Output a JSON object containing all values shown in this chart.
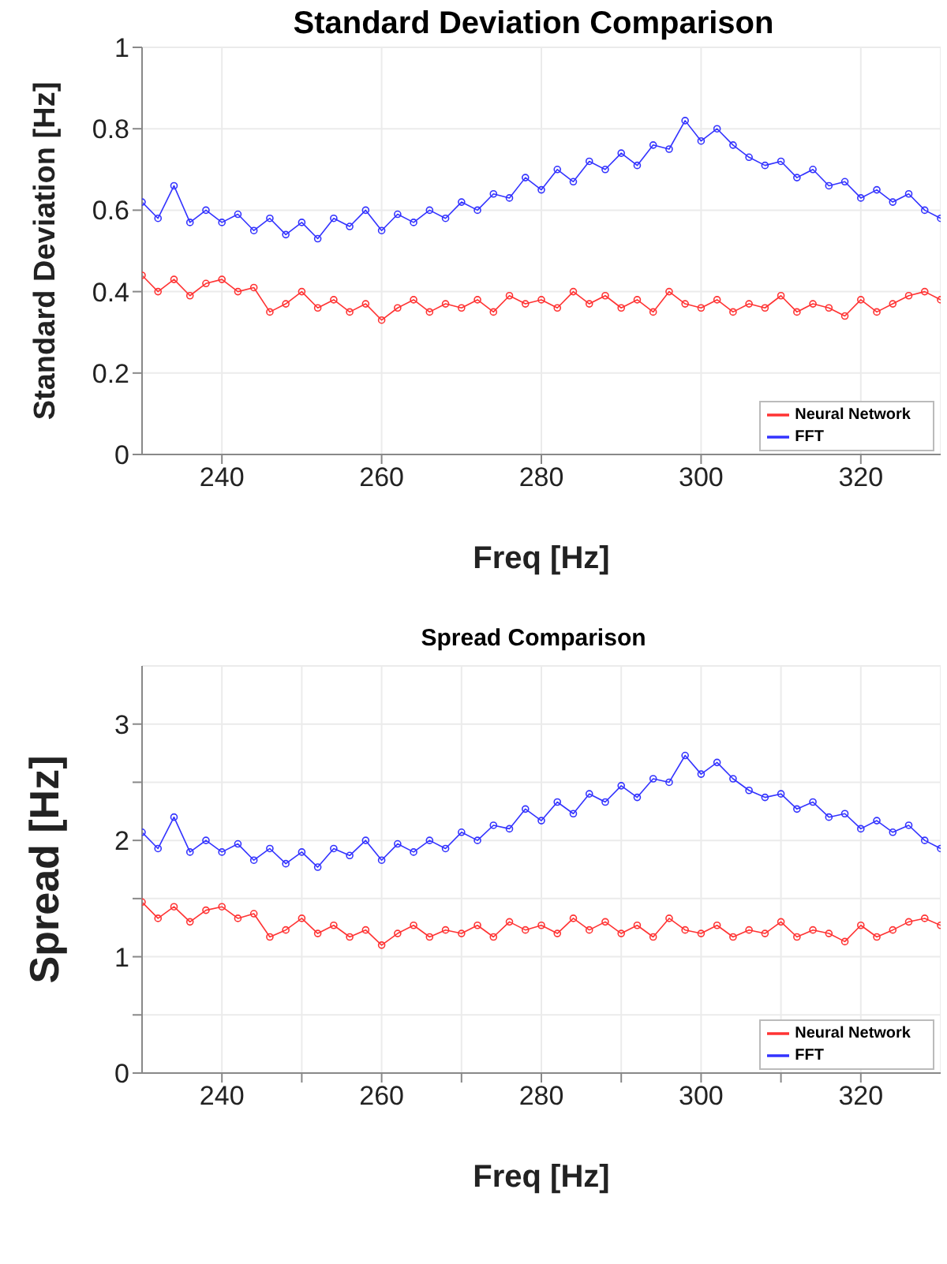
{
  "chart_data": [
    {
      "type": "line",
      "title": "Standard Deviation Comparison",
      "xlabel": "Freq [Hz]",
      "ylabel": "Standard Deviation [Hz]",
      "x": [
        230,
        232,
        234,
        236,
        238,
        240,
        242,
        244,
        246,
        248,
        250,
        252,
        254,
        256,
        258,
        260,
        262,
        264,
        266,
        268,
        270,
        272,
        274,
        276,
        278,
        280,
        282,
        284,
        286,
        288,
        290,
        292,
        294,
        296,
        298,
        300,
        302,
        304,
        306,
        308,
        310,
        312,
        314,
        316,
        318,
        320,
        322,
        324,
        326,
        328,
        330
      ],
      "series": [
        {
          "name": "Neural Network",
          "color": "#ff3333",
          "marker": "circle",
          "values": [
            0.44,
            0.4,
            0.43,
            0.39,
            0.42,
            0.43,
            0.4,
            0.41,
            0.35,
            0.37,
            0.4,
            0.36,
            0.38,
            0.35,
            0.37,
            0.33,
            0.36,
            0.38,
            0.35,
            0.37,
            0.36,
            0.38,
            0.35,
            0.39,
            0.37,
            0.38,
            0.36,
            0.4,
            0.37,
            0.39,
            0.36,
            0.38,
            0.35,
            0.4,
            0.37,
            0.36,
            0.38,
            0.35,
            0.37,
            0.36,
            0.39,
            0.35,
            0.37,
            0.36,
            0.34,
            0.38,
            0.35,
            0.37,
            0.39,
            0.4,
            0.38
          ]
        },
        {
          "name": "FFT",
          "color": "#3333ff",
          "marker": "circle",
          "values": [
            0.62,
            0.58,
            0.66,
            0.57,
            0.6,
            0.57,
            0.59,
            0.55,
            0.58,
            0.54,
            0.57,
            0.53,
            0.58,
            0.56,
            0.6,
            0.55,
            0.59,
            0.57,
            0.6,
            0.58,
            0.62,
            0.6,
            0.64,
            0.63,
            0.68,
            0.65,
            0.7,
            0.67,
            0.72,
            0.7,
            0.74,
            0.71,
            0.76,
            0.75,
            0.82,
            0.77,
            0.8,
            0.76,
            0.73,
            0.71,
            0.72,
            0.68,
            0.7,
            0.66,
            0.67,
            0.63,
            0.65,
            0.62,
            0.64,
            0.6,
            0.58
          ]
        }
      ],
      "xlim": [
        230,
        330
      ],
      "xticks": [
        240,
        260,
        280,
        300,
        320
      ],
      "ylim": [
        0,
        1
      ],
      "yticks": [
        0,
        0.2,
        0.4,
        0.6,
        0.8,
        1
      ],
      "grid": true,
      "legend": "bottom right",
      "line_style": "solid"
    },
    {
      "type": "line",
      "title": "Spread Comparison",
      "xlabel": "Freq [Hz]",
      "ylabel": "Spread [Hz]",
      "x": [
        230,
        232,
        234,
        236,
        238,
        240,
        242,
        244,
        246,
        248,
        250,
        252,
        254,
        256,
        258,
        260,
        262,
        264,
        266,
        268,
        270,
        272,
        274,
        276,
        278,
        280,
        282,
        284,
        286,
        288,
        290,
        292,
        294,
        296,
        298,
        300,
        302,
        304,
        306,
        308,
        310,
        312,
        314,
        316,
        318,
        320,
        322,
        324,
        326,
        328,
        330
      ],
      "series": [
        {
          "name": "Neural Network",
          "color": "#ff3333",
          "marker": "circle",
          "values": [
            1.47,
            1.33,
            1.43,
            1.3,
            1.4,
            1.43,
            1.33,
            1.37,
            1.17,
            1.23,
            1.33,
            1.2,
            1.27,
            1.17,
            1.23,
            1.1,
            1.2,
            1.27,
            1.17,
            1.23,
            1.2,
            1.27,
            1.17,
            1.3,
            1.23,
            1.27,
            1.2,
            1.33,
            1.23,
            1.3,
            1.2,
            1.27,
            1.17,
            1.33,
            1.23,
            1.2,
            1.27,
            1.17,
            1.23,
            1.2,
            1.3,
            1.17,
            1.23,
            1.2,
            1.13,
            1.27,
            1.17,
            1.23,
            1.3,
            1.33,
            1.27
          ]
        },
        {
          "name": "FFT",
          "color": "#3333ff",
          "marker": "circle",
          "values": [
            2.07,
            1.93,
            2.2,
            1.9,
            2.0,
            1.9,
            1.97,
            1.83,
            1.93,
            1.8,
            1.9,
            1.77,
            1.93,
            1.87,
            2.0,
            1.83,
            1.97,
            1.9,
            2.0,
            1.93,
            2.07,
            2.0,
            2.13,
            2.1,
            2.27,
            2.17,
            2.33,
            2.23,
            2.4,
            2.33,
            2.47,
            2.37,
            2.53,
            2.5,
            2.73,
            2.57,
            2.67,
            2.53,
            2.43,
            2.37,
            2.4,
            2.27,
            2.33,
            2.2,
            2.23,
            2.1,
            2.17,
            2.07,
            2.13,
            2.0,
            1.93
          ]
        }
      ],
      "xlim": [
        230,
        330
      ],
      "xticks": [
        240,
        {
          "value": 250,
          "label": null
        },
        260,
        {
          "value": 270,
          "label": null
        },
        280,
        {
          "value": 290,
          "label": null
        },
        300,
        {
          "value": 310,
          "label": null
        },
        320
      ],
      "ylim": [
        0,
        3.5
      ],
      "yticks": [
        0,
        {
          "value": 0.5,
          "label": null
        },
        1,
        {
          "value": 1.5,
          "label": null
        },
        2,
        {
          "value": 2.5,
          "label": null
        },
        3
      ],
      "grid": true,
      "legend": "bottom right",
      "line_style": "solid"
    }
  ]
}
